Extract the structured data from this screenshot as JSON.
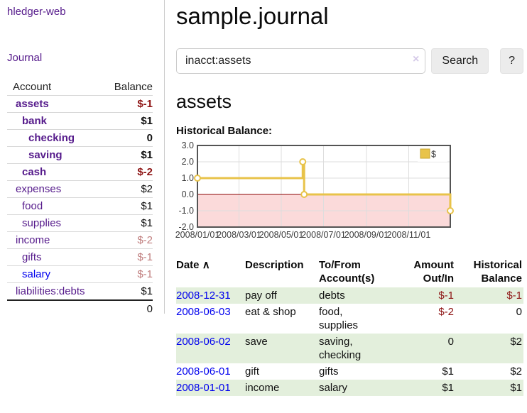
{
  "app": {
    "brand": "hledger-web",
    "nav_journal": "Journal"
  },
  "sidebar": {
    "columns": [
      "Account",
      "Balance"
    ],
    "accounts": [
      {
        "name": "assets",
        "depth": 1,
        "bold": true,
        "balance": "$-1",
        "neg": "dark"
      },
      {
        "name": "bank",
        "depth": 2,
        "bold": true,
        "balance": "$1"
      },
      {
        "name": "checking",
        "depth": 3,
        "bold": true,
        "balance": "0"
      },
      {
        "name": "saving",
        "depth": 3,
        "bold": true,
        "balance": "$1"
      },
      {
        "name": "cash",
        "depth": 2,
        "bold": true,
        "balance": "$-2",
        "neg": "dark"
      },
      {
        "name": "expenses",
        "depth": 1,
        "bold": false,
        "balance": "$2"
      },
      {
        "name": "food",
        "depth": 2,
        "bold": false,
        "balance": "$1"
      },
      {
        "name": "supplies",
        "depth": 2,
        "bold": false,
        "balance": "$1"
      },
      {
        "name": "income",
        "depth": 1,
        "bold": false,
        "balance": "$-2",
        "neg": "light"
      },
      {
        "name": "gifts",
        "depth": 2,
        "bold": false,
        "balance": "$-1",
        "neg": "light"
      },
      {
        "name": "salary",
        "depth": 2,
        "bold": false,
        "balance": "$-1",
        "neg": "light",
        "link_color": "blue"
      },
      {
        "name": "liabilities:debts",
        "depth": 1,
        "bold": false,
        "balance": "$1"
      }
    ],
    "total": "0"
  },
  "header": {
    "title": "sample.journal"
  },
  "search": {
    "value": "inacct:assets",
    "clear_icon": "×",
    "button": "Search",
    "help_button": "?"
  },
  "account_page": {
    "heading": "assets",
    "chart_label": "Historical Balance:"
  },
  "chart_data": {
    "type": "line",
    "style": "step",
    "title": "Historical Balance:",
    "series": [
      {
        "name": "$",
        "color": "#e8c34a",
        "points": [
          [
            "2008-01-01",
            1
          ],
          [
            "2008-06-01",
            2
          ],
          [
            "2008-06-03",
            0
          ],
          [
            "2008-12-31",
            -1
          ]
        ]
      }
    ],
    "ylim": [
      -2,
      3
    ],
    "xlim": [
      "2008-01-01",
      "2008-12-31"
    ],
    "y_ticks": [
      "3.0",
      "2.0",
      "1.0",
      "0.0",
      "-1.0",
      "-2.0"
    ],
    "x_ticks": [
      "2008/01/01",
      "2008/03/01",
      "2008/05/01",
      "2008/07/01",
      "2008/09/01",
      "2008/11/01"
    ],
    "grid": true,
    "legend": {
      "position": "top-right",
      "label": "$"
    },
    "negative_region_fill": "#fbdada",
    "zero_line_color": "#8b0000"
  },
  "register": {
    "columns": [
      "Date",
      "Description",
      "To/From Account(s)",
      "Amount Out/In",
      "Historical Balance"
    ],
    "sort_icon": "∧",
    "rows": [
      {
        "date": "2008-12-31",
        "description": "pay off",
        "accounts": "debts",
        "amount": "$-1",
        "amount_neg": true,
        "balance": "$-1",
        "balance_neg": true,
        "shaded": true
      },
      {
        "date": "2008-06-03",
        "description": "eat & shop",
        "accounts": "food, supplies",
        "amount": "$-2",
        "amount_neg": true,
        "balance": "0",
        "balance_neg": false,
        "shaded": false
      },
      {
        "date": "2008-06-02",
        "description": "save",
        "accounts": "saving, checking",
        "amount": "0",
        "amount_neg": false,
        "balance": "$2",
        "balance_neg": false,
        "shaded": true
      },
      {
        "date": "2008-06-01",
        "description": "gift",
        "accounts": "gifts",
        "amount": "$1",
        "amount_neg": false,
        "balance": "$2",
        "balance_neg": false,
        "shaded": false
      },
      {
        "date": "2008-01-01",
        "description": "income",
        "accounts": "salary",
        "amount": "$1",
        "amount_neg": false,
        "balance": "$1",
        "balance_neg": false,
        "shaded": true
      }
    ]
  },
  "colors": {
    "link_visited": "#551a8b",
    "link_unvisited": "#0000ee",
    "negative_strong": "#8e1515",
    "negative_muted": "#c07e7e",
    "row_shade_green": "#e3efdc",
    "series_gold": "#e8c34a",
    "zero_line": "#8b0000",
    "negative_region": "#fbdada",
    "chart_border": "#545454",
    "gridline": "#dddddd"
  }
}
